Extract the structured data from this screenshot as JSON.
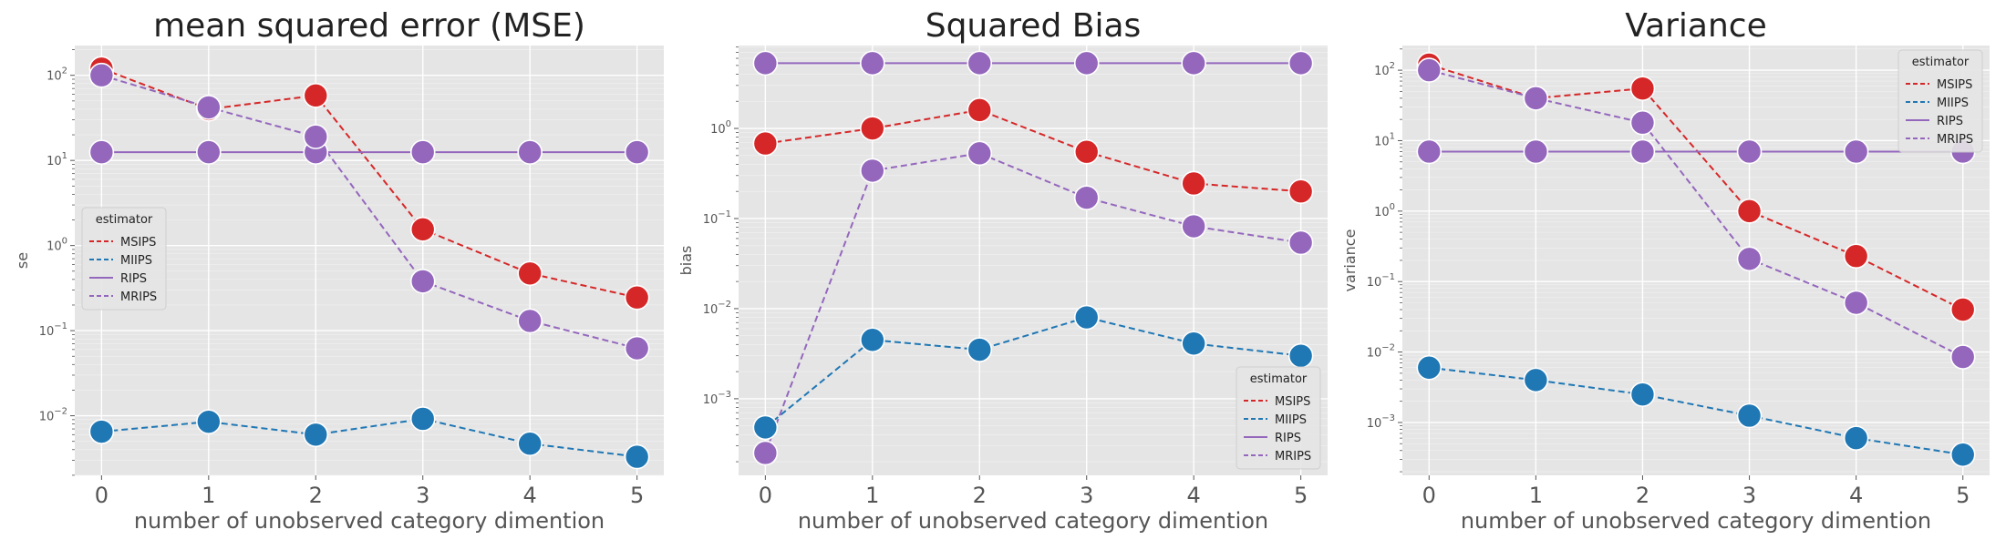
{
  "chart_data": [
    {
      "type": "line",
      "title": "mean squared error (MSE)",
      "xlabel": "number of unobserved category dimention",
      "ylabel": "se",
      "yscale": "log",
      "ylim_exp": [
        -2.7,
        2.35
      ],
      "x": [
        0,
        1,
        2,
        3,
        4,
        5
      ],
      "y_ticks": [
        "10^-2",
        "10^-1",
        "10^0",
        "10^1",
        "10^2"
      ],
      "grid": true,
      "legend": {
        "title": "estimator",
        "position": "center-left"
      },
      "series": [
        {
          "name": "MSIPS",
          "color": "#d62728",
          "dash": true,
          "values": [
            120,
            40,
            58,
            1.55,
            0.47,
            0.245
          ]
        },
        {
          "name": "MIIPS",
          "color": "#1f77b4",
          "dash": true,
          "values": [
            0.0065,
            0.0085,
            0.006,
            0.0092,
            0.0047,
            0.0033
          ]
        },
        {
          "name": "RIPS",
          "color": "#9467bd",
          "dash": false,
          "values": [
            12.5,
            12.5,
            12.5,
            12.5,
            12.5,
            12.5
          ]
        },
        {
          "name": "MRIPS",
          "color": "#9467bd",
          "dash": true,
          "values": [
            100,
            42,
            19,
            0.38,
            0.13,
            0.062
          ]
        }
      ]
    },
    {
      "type": "line",
      "title": "Squared Bias",
      "xlabel": "number of unobserved category dimention",
      "ylabel": "bias",
      "yscale": "log",
      "ylim_exp": [
        -3.85,
        0.92
      ],
      "x": [
        0,
        1,
        2,
        3,
        4,
        5
      ],
      "y_ticks": [
        "10^-3",
        "10^-2",
        "10^-1",
        "10^0"
      ],
      "grid": true,
      "legend": {
        "title": "estimator",
        "position": "lower-right"
      },
      "series": [
        {
          "name": "MSIPS",
          "color": "#d62728",
          "dash": true,
          "values": [
            0.68,
            1.0,
            1.6,
            0.55,
            0.245,
            0.2
          ]
        },
        {
          "name": "MIIPS",
          "color": "#1f77b4",
          "dash": true,
          "values": [
            0.00048,
            0.0045,
            0.0035,
            0.008,
            0.0041,
            0.003
          ]
        },
        {
          "name": "RIPS",
          "color": "#9467bd",
          "dash": false,
          "values": [
            5.3,
            5.3,
            5.3,
            5.3,
            5.3,
            5.3
          ]
        },
        {
          "name": "MRIPS",
          "color": "#9467bd",
          "dash": true,
          "values": [
            0.00025,
            0.34,
            0.53,
            0.17,
            0.082,
            0.054
          ]
        }
      ]
    },
    {
      "type": "line",
      "title": "Variance",
      "xlabel": "number of unobserved category dimention",
      "ylabel": "variance",
      "yscale": "log",
      "ylim_exp": [
        -3.75,
        2.35
      ],
      "x": [
        0,
        1,
        2,
        3,
        4,
        5
      ],
      "y_ticks": [
        "10^-3",
        "10^-2",
        "10^-1",
        "10^0",
        "10^1",
        "10^2"
      ],
      "grid": true,
      "legend": {
        "title": "estimator",
        "position": "upper-right"
      },
      "series": [
        {
          "name": "MSIPS",
          "color": "#d62728",
          "dash": true,
          "values": [
            120,
            40,
            55,
            1.0,
            0.23,
            0.04
          ]
        },
        {
          "name": "MIIPS",
          "color": "#1f77b4",
          "dash": true,
          "values": [
            0.006,
            0.004,
            0.0025,
            0.00125,
            0.0006,
            0.00035
          ]
        },
        {
          "name": "RIPS",
          "color": "#9467bd",
          "dash": false,
          "values": [
            7.0,
            7.0,
            7.0,
            7.0,
            7.0,
            7.0
          ]
        },
        {
          "name": "MRIPS",
          "color": "#9467bd",
          "dash": true,
          "values": [
            100,
            40,
            18,
            0.21,
            0.05,
            0.0085
          ]
        }
      ]
    }
  ]
}
